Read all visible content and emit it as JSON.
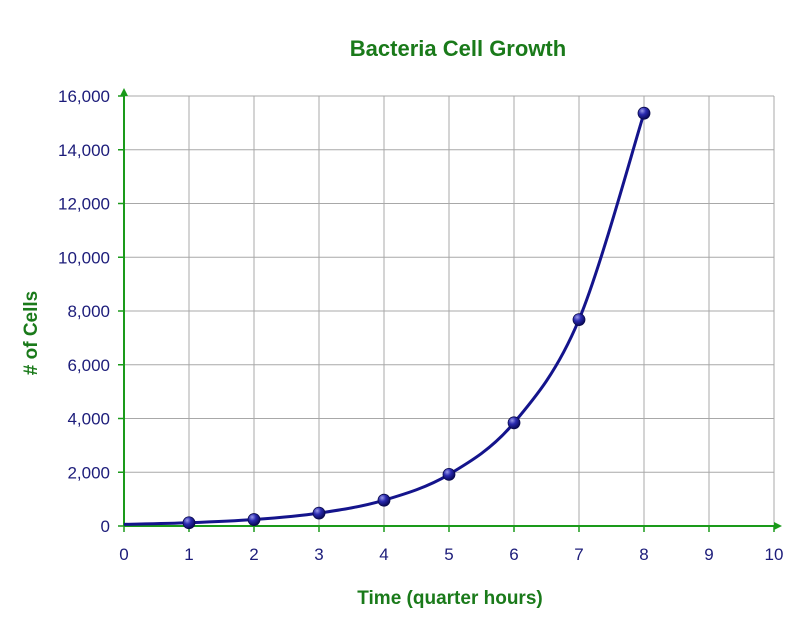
{
  "colors": {
    "title": "#1a7a1a",
    "axis_label": "#1a7a1a",
    "axis_line": "#1a9a1a",
    "tick_label": "#1c1c7a",
    "series": "#14148c",
    "grid": "#a8a8a8"
  },
  "chart_data": {
    "type": "line",
    "title": "Bacteria Cell Growth",
    "xlabel": "Time (quarter hours)",
    "ylabel": "# of Cells",
    "xlim": [
      0,
      10
    ],
    "ylim": [
      0,
      16000
    ],
    "x_ticks": [
      "0",
      "1",
      "2",
      "3",
      "4",
      "5",
      "6",
      "7",
      "8",
      "9",
      "10"
    ],
    "y_ticks": [
      "0",
      "2,000",
      "4,000",
      "6,000",
      "8,000",
      "10,000",
      "12,000",
      "14,000",
      "16,000"
    ],
    "grid": true,
    "smooth": true,
    "series": [
      {
        "x": [
          1,
          2,
          3,
          4,
          5,
          6,
          7,
          8
        ],
        "y": [
          120,
          240,
          480,
          960,
          1920,
          3840,
          7680,
          15360
        ],
        "curve_start": [
          0,
          60
        ]
      }
    ]
  }
}
